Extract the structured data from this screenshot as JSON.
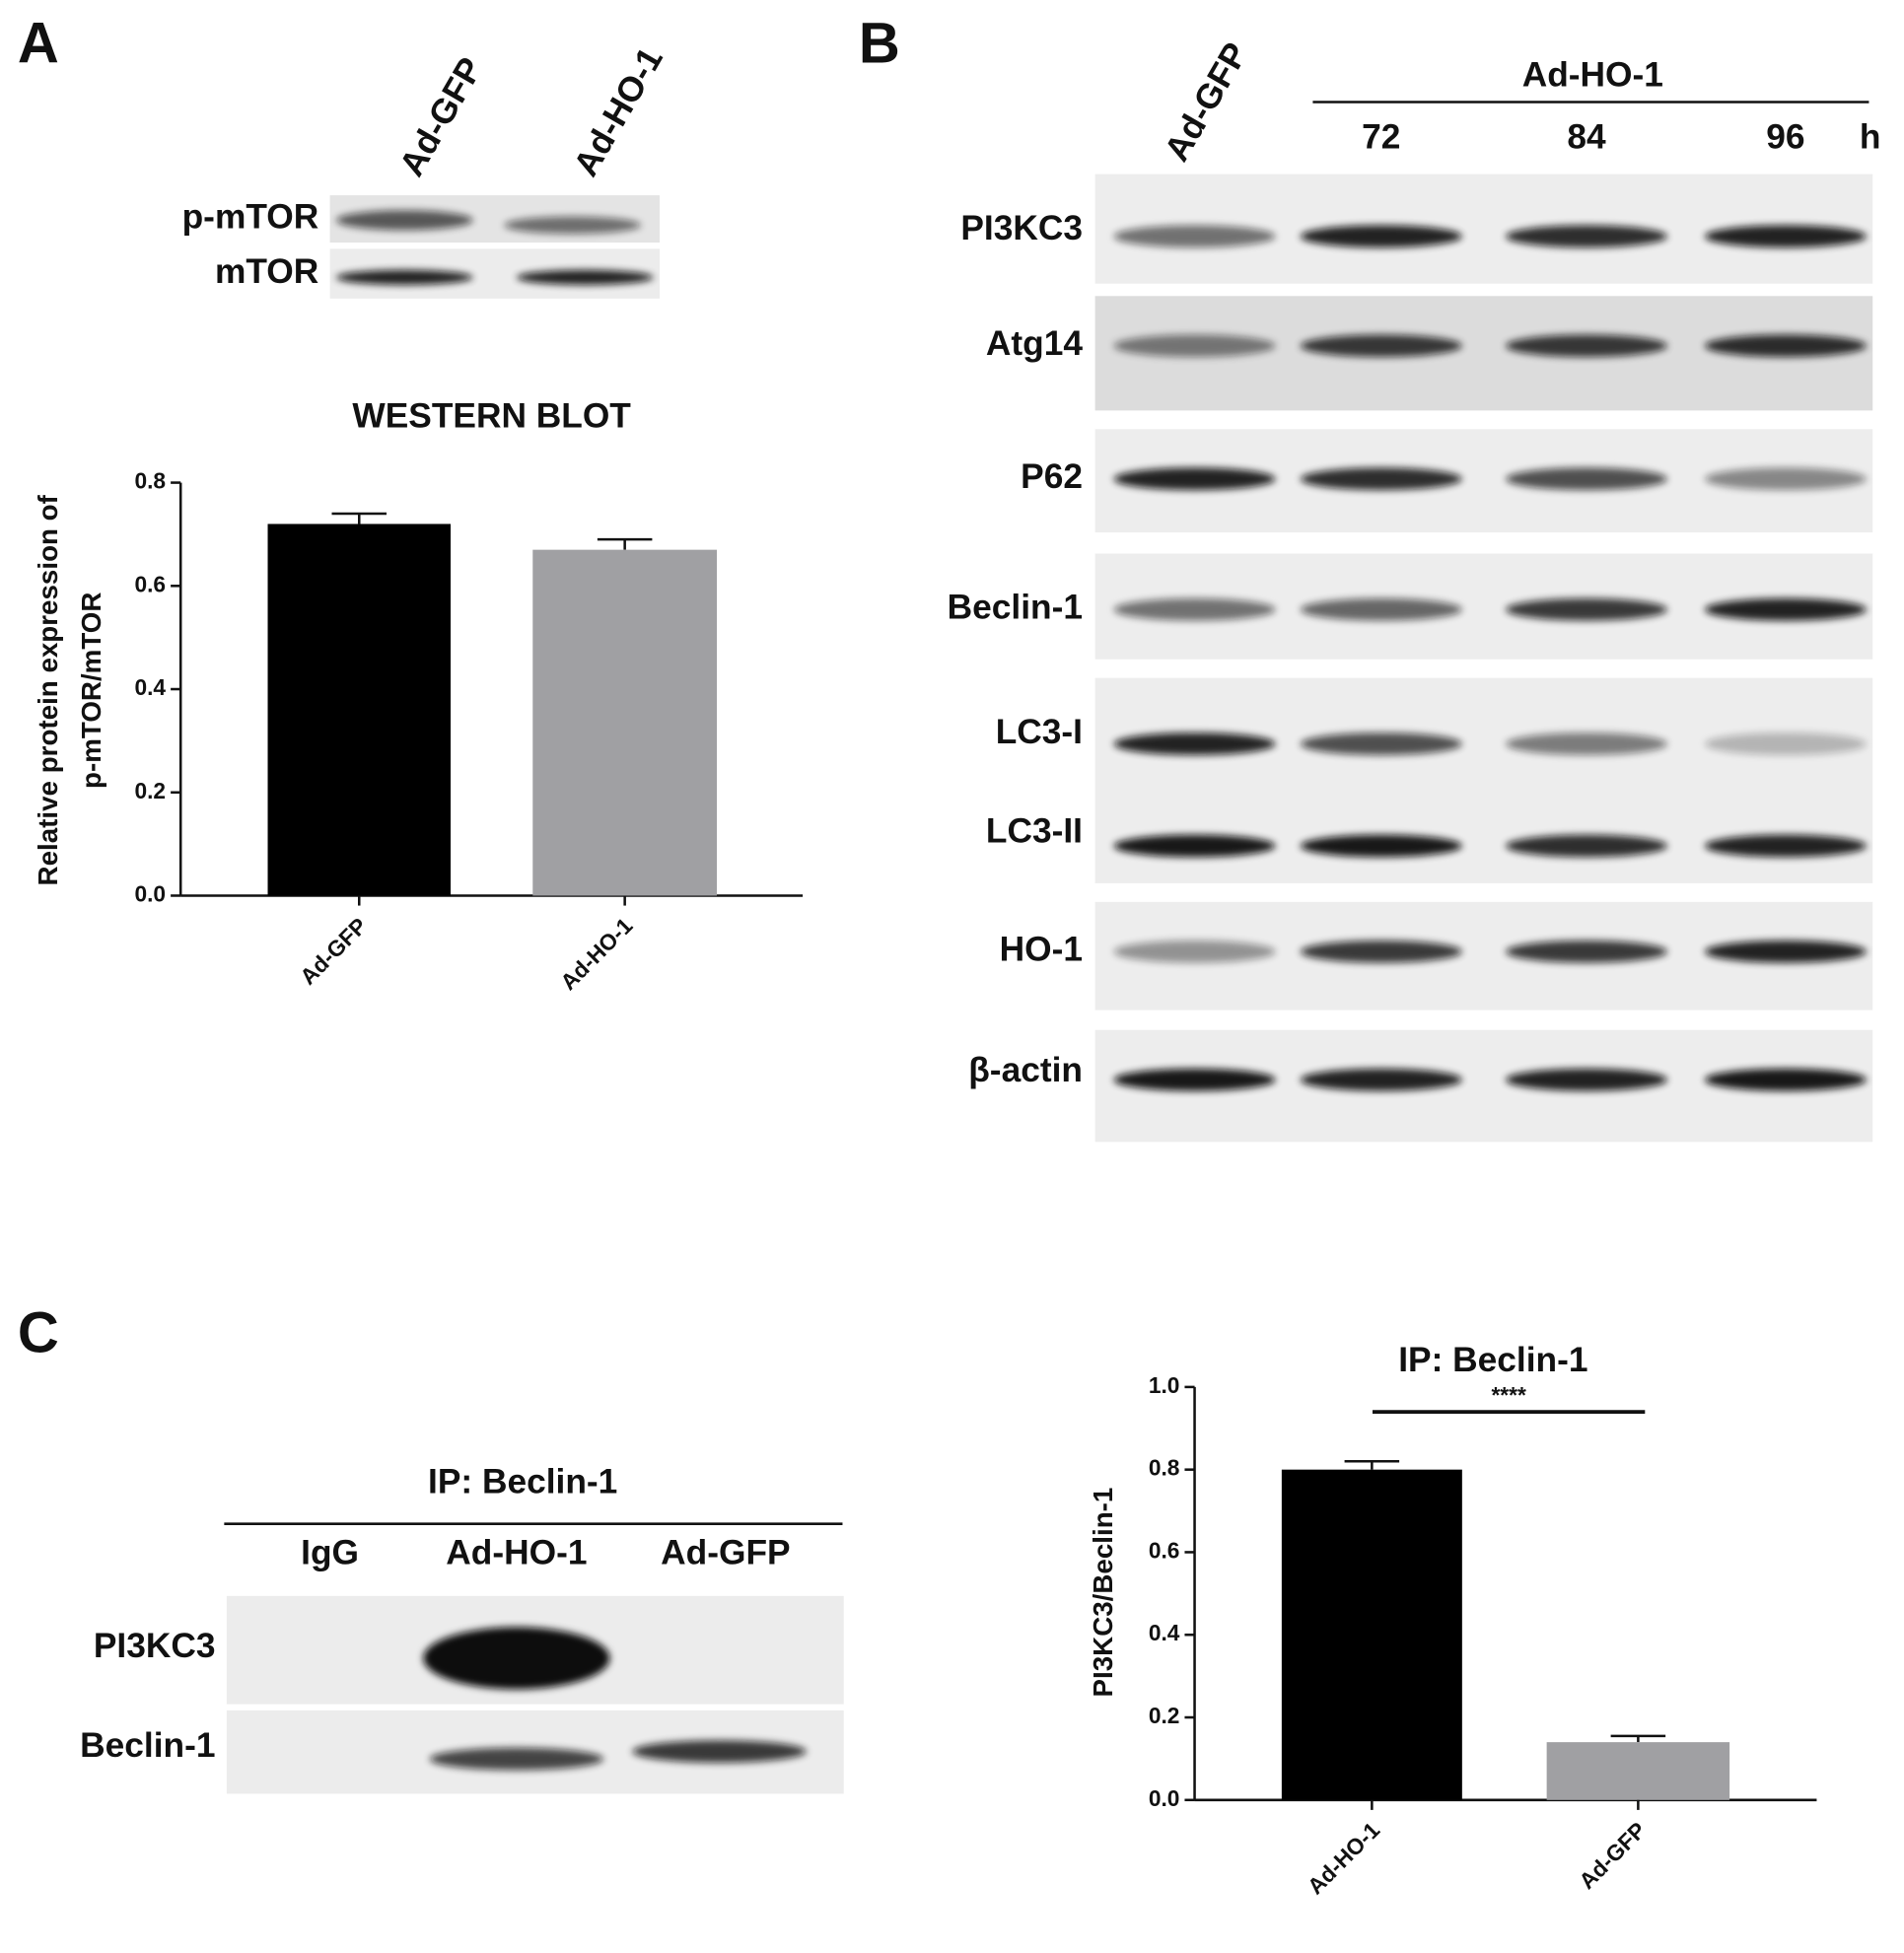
{
  "panels": {
    "a": {
      "letter": "A",
      "lanes": [
        "Ad-GFP",
        "Ad-HO-1"
      ],
      "rows": [
        "p-mTOR",
        "mTOR"
      ]
    },
    "b": {
      "letter": "B",
      "control": "Ad-GFP",
      "group": "Ad-HO-1",
      "times": [
        "72",
        "84",
        "96"
      ],
      "unit": "h",
      "rows": [
        "PI3KC3",
        "Atg14",
        "P62",
        "Beclin-1",
        "LC3-I",
        "LC3-II",
        "HO-1",
        "β-actin"
      ]
    },
    "c": {
      "letter": "C",
      "title": "IP: Beclin-1",
      "lanes": [
        "IgG",
        "Ad-HO-1",
        "Ad-GFP"
      ],
      "rows": [
        "PI3KC3",
        "Beclin-1"
      ]
    }
  },
  "chart_data": [
    {
      "type": "bar",
      "title": "WESTERN   BLOT",
      "y_label": [
        "Relative protein expression of",
        "p-mTOR/mTOR"
      ],
      "categories": [
        "Ad-GFP",
        "Ad-HO-1"
      ],
      "values": [
        0.72,
        0.67
      ],
      "errors": [
        0.02,
        0.02
      ],
      "colors": [
        "#000000",
        "#a0a0a3"
      ],
      "ylim": [
        0,
        0.8
      ],
      "yticks": [
        {
          "value": 0,
          "label": "0.0"
        },
        {
          "value": 0.2,
          "label": "0.2"
        },
        {
          "value": 0.4,
          "label": "0.4"
        },
        {
          "value": 0.6,
          "label": "0.6"
        },
        {
          "value": 0.8,
          "label": "0.8"
        }
      ]
    },
    {
      "type": "bar",
      "title": "IP: Beclin-1",
      "annotation": "****",
      "y_label": [
        "PI3KC3/Beclin-1"
      ],
      "categories": [
        "Ad-HO-1",
        "Ad-GFP"
      ],
      "values": [
        0.8,
        0.14
      ],
      "errors": [
        0.02,
        0.015
      ],
      "colors": [
        "#000000",
        "#a0a0a3"
      ],
      "ylim": [
        0,
        1
      ],
      "yticks": [
        {
          "value": 0,
          "label": "0.0"
        },
        {
          "value": 0.2,
          "label": "0.2"
        },
        {
          "value": 0.4,
          "label": "0.4"
        },
        {
          "value": 0.6,
          "label": "0.6"
        },
        {
          "value": 0.8,
          "label": "0.8"
        },
        {
          "value": 1,
          "label": "1.0"
        }
      ]
    }
  ]
}
